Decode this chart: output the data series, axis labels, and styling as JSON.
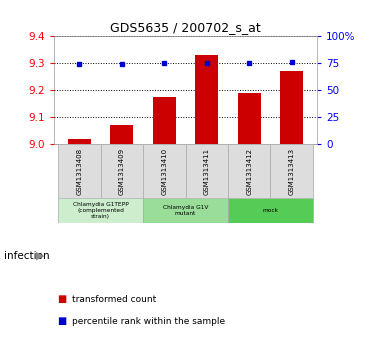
{
  "title": "GDS5635 / 200702_s_at",
  "samples": [
    "GSM1313408",
    "GSM1313409",
    "GSM1313410",
    "GSM1313411",
    "GSM1313412",
    "GSM1313413"
  ],
  "bar_values": [
    9.02,
    9.07,
    9.175,
    9.33,
    9.19,
    9.27
  ],
  "percentile_values": [
    74,
    74,
    75,
    75,
    75,
    76
  ],
  "ylim_left": [
    9.0,
    9.4
  ],
  "ylim_right": [
    0,
    100
  ],
  "yticks_left": [
    9.0,
    9.1,
    9.2,
    9.3,
    9.4
  ],
  "yticks_right": [
    0,
    25,
    50,
    75,
    100
  ],
  "ytick_labels_right": [
    "0",
    "25",
    "50",
    "75",
    "100%"
  ],
  "bar_color": "#cc0000",
  "dot_color": "#0000cc",
  "bg_color": "#ffffff",
  "groups": [
    {
      "label": "Chlamydia G1TEPP\n(complemented\nstrain)",
      "start": 0,
      "end": 2,
      "color": "#cceecc"
    },
    {
      "label": "Chlamydia G1V\nmutant",
      "start": 2,
      "end": 4,
      "color": "#99dd99"
    },
    {
      "label": "mock",
      "start": 4,
      "end": 6,
      "color": "#55cc55"
    }
  ],
  "infection_label": "infection",
  "legend_items": [
    {
      "color": "#cc0000",
      "label": "transformed count"
    },
    {
      "color": "#0000cc",
      "label": "percentile rank within the sample"
    }
  ]
}
